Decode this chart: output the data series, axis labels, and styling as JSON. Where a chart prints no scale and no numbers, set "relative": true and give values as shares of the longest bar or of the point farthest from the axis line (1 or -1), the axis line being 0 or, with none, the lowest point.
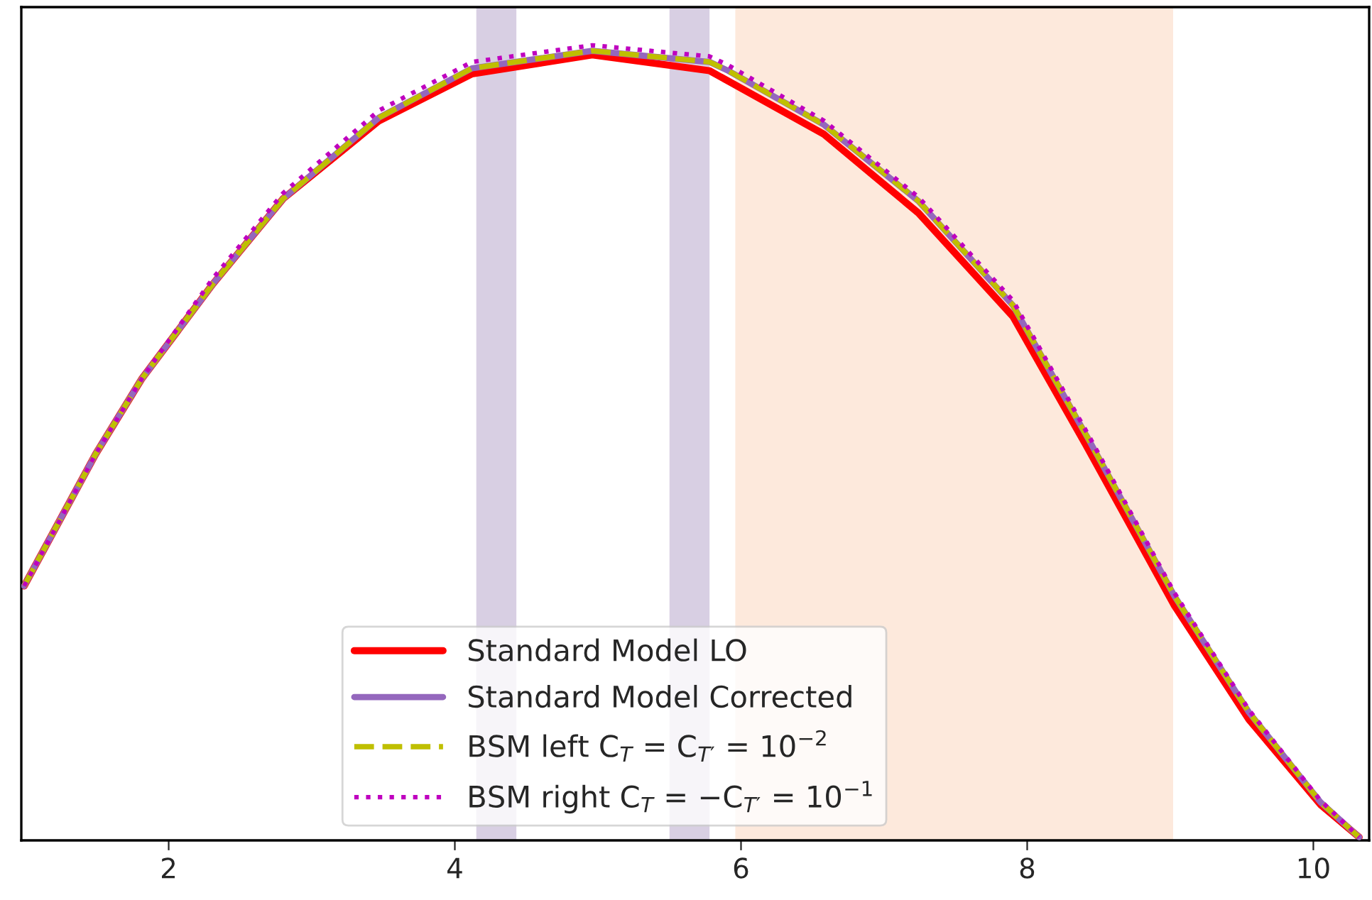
{
  "chart_data": {
    "type": "line",
    "relative": true,
    "xlim": [
      0.97,
      10.39
    ],
    "xticks": [
      2,
      4,
      6,
      8,
      10
    ],
    "tick_labels": "x",
    "grid": false,
    "legend": "bottom",
    "bands": [
      {
        "axis": "x",
        "from": 4.15,
        "to": 4.43,
        "color": "#d8cfe3"
      },
      {
        "axis": "x",
        "from": 5.5,
        "to": 5.78,
        "color": "#d8cfe3"
      },
      {
        "axis": "x",
        "from": 5.96,
        "to": 9.02,
        "color": "#fde9dc"
      }
    ],
    "series": [
      {
        "name": "Standard Model LO",
        "color": "#ff0000",
        "line_style": "solid",
        "x": [
          0.99,
          1.49,
          1.81,
          2.31,
          2.8,
          3.47,
          4.12,
          4.96,
          5.78,
          5.91,
          6.58,
          7.24,
          7.9,
          8.43,
          9.03,
          9.55,
          10.05,
          10.32
        ],
        "values": [
          0.32,
          0.486,
          0.58,
          0.7,
          0.807,
          0.905,
          0.964,
          0.988,
          0.968,
          0.955,
          0.888,
          0.789,
          0.659,
          0.491,
          0.295,
          0.152,
          0.045,
          0.004
        ]
      },
      {
        "name": "Standard Model Corrected",
        "color": "#9467bd",
        "line_style": "solid",
        "x": [
          0.99,
          1.49,
          1.81,
          2.31,
          2.8,
          3.47,
          4.12,
          4.96,
          5.78,
          5.91,
          6.58,
          7.24,
          7.9,
          8.43,
          9.03,
          9.55,
          10.05,
          10.32
        ],
        "values": [
          0.32,
          0.486,
          0.58,
          0.7,
          0.807,
          0.909,
          0.971,
          0.993,
          0.979,
          0.968,
          0.9,
          0.804,
          0.673,
          0.504,
          0.307,
          0.161,
          0.048,
          0.004
        ]
      },
      {
        "name": "BSM left C$_{T}$ = C$_{T′}$ = 10$^{−2}$",
        "color": "#bfbf00",
        "line_style": "dashed",
        "x": [
          0.99,
          1.49,
          1.81,
          2.31,
          2.8,
          3.47,
          4.12,
          4.96,
          5.78,
          5.91,
          6.58,
          7.24,
          7.9,
          8.43,
          9.03,
          9.55,
          10.05,
          10.32
        ],
        "values": [
          0.32,
          0.486,
          0.58,
          0.7,
          0.807,
          0.909,
          0.971,
          0.993,
          0.979,
          0.968,
          0.9,
          0.804,
          0.673,
          0.504,
          0.307,
          0.161,
          0.048,
          0.004
        ]
      },
      {
        "name": "BSM right C$_{T}$ = −C$_{T′}$ = 10$^{−1}$",
        "color": "#bf00bf",
        "line_style": "dotted",
        "x": [
          0.99,
          1.49,
          1.81,
          2.31,
          2.8,
          3.47,
          4.12,
          4.96,
          5.78,
          5.91,
          6.58,
          7.24,
          7.9,
          8.43,
          9.03,
          9.55,
          10.05,
          10.32
        ],
        "values": [
          0.32,
          0.486,
          0.58,
          0.707,
          0.814,
          0.918,
          0.979,
          1.0,
          0.986,
          0.975,
          0.905,
          0.809,
          0.679,
          0.509,
          0.311,
          0.164,
          0.05,
          0.004
        ]
      }
    ]
  }
}
